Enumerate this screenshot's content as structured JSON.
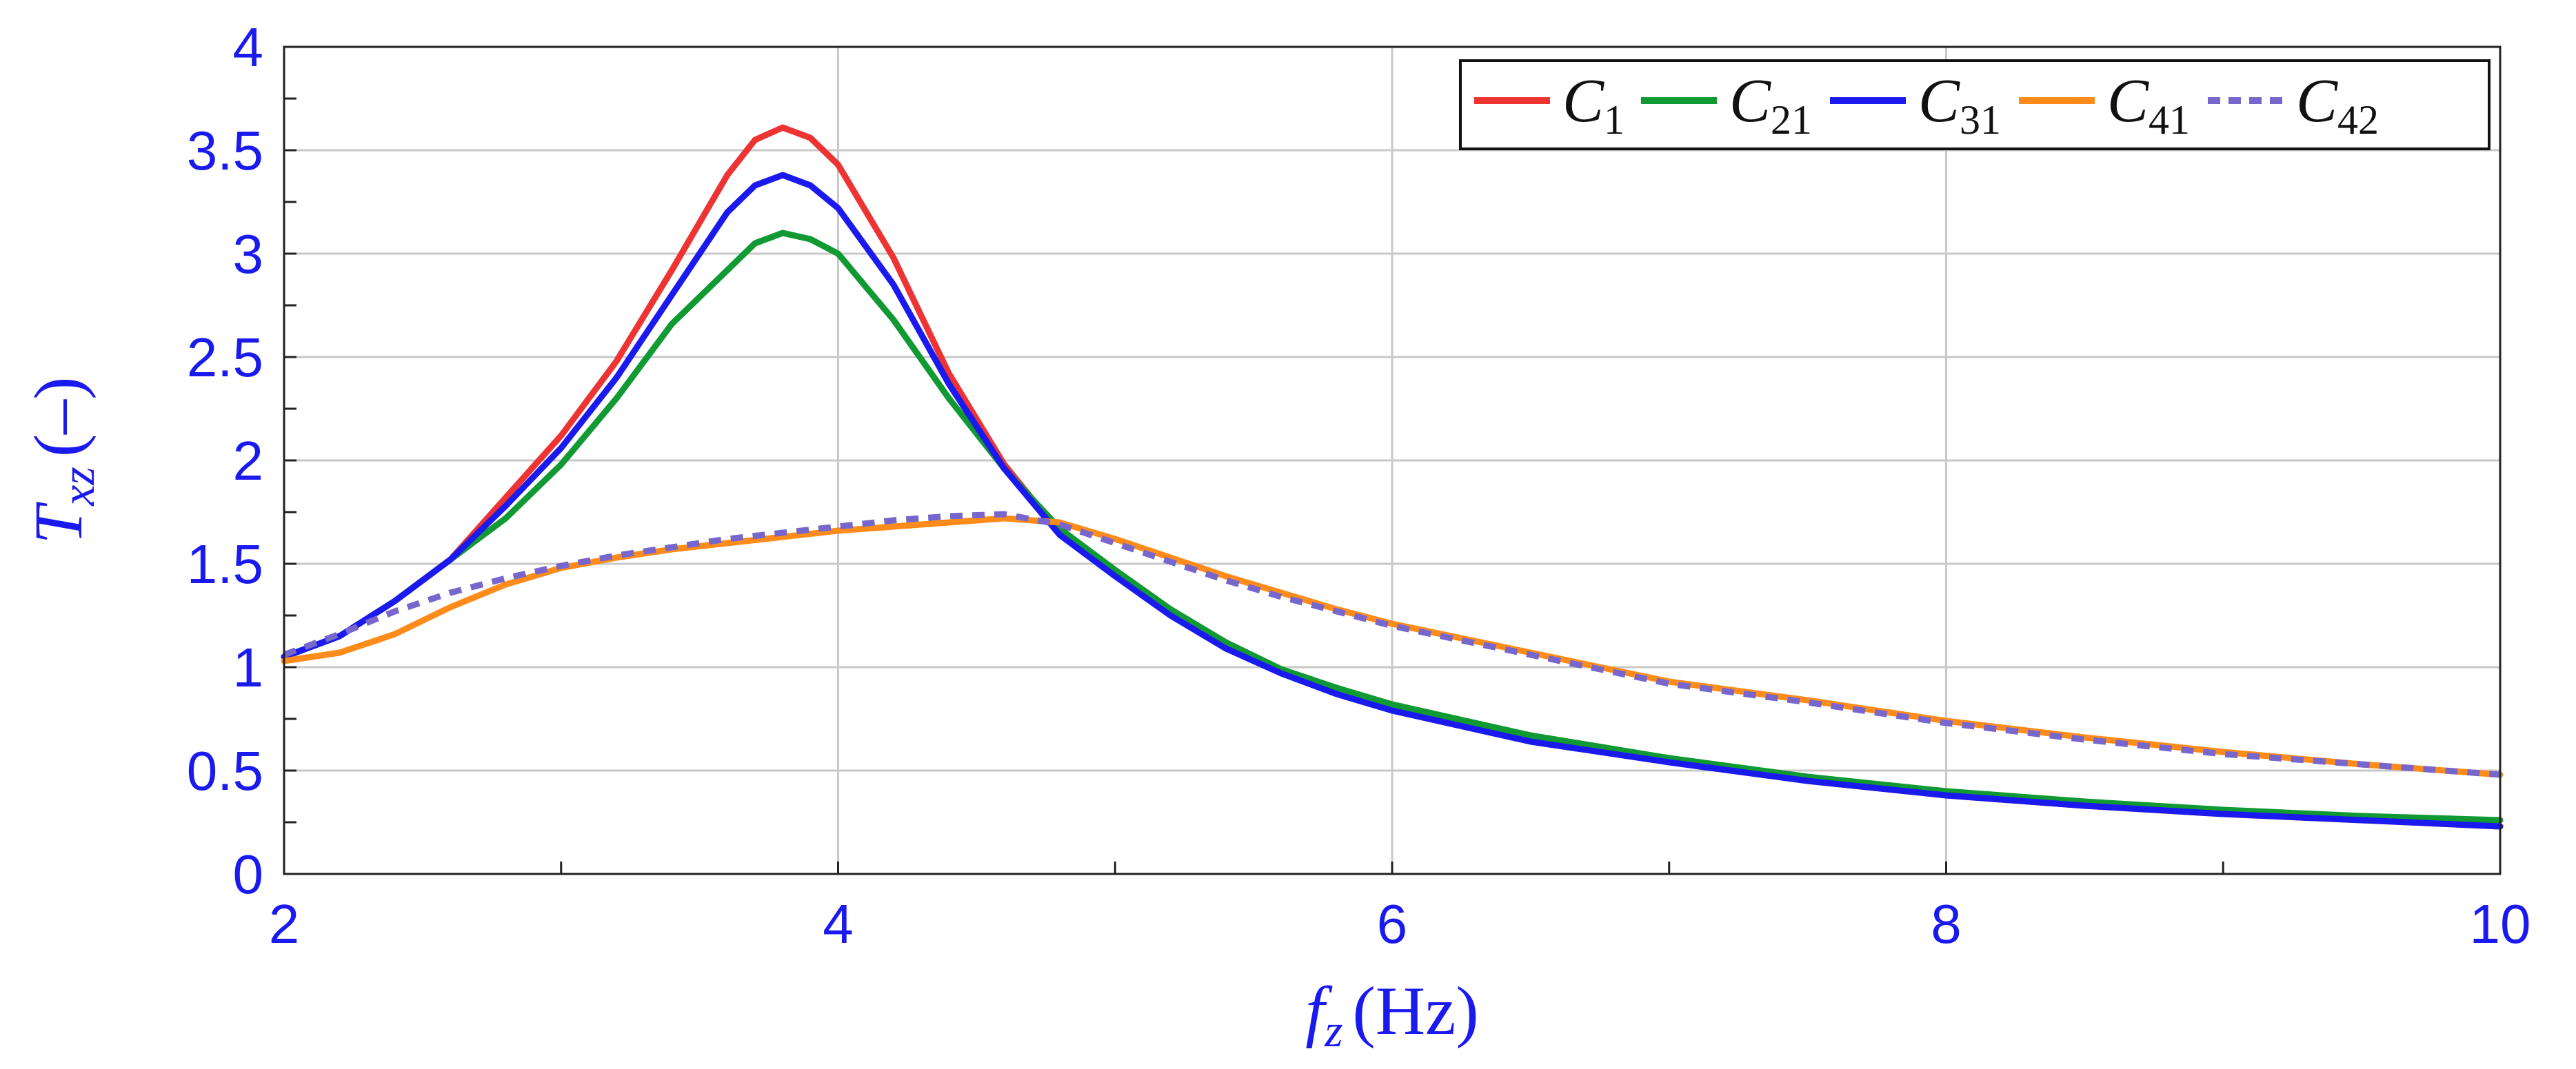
{
  "chart_data": {
    "type": "line",
    "xlabel": {
      "main": "f",
      "sub": "z",
      "unit": "(Hz)"
    },
    "ylabel": {
      "main": "T",
      "sub": "xz",
      "unit": "(–)"
    },
    "xlim": [
      2,
      10
    ],
    "ylim": [
      0,
      4
    ],
    "xticks": [
      2,
      4,
      6,
      8,
      10
    ],
    "yticks": [
      0,
      0.5,
      1,
      1.5,
      2,
      2.5,
      3,
      3.5,
      4
    ],
    "xtick_labels": [
      "2",
      "4",
      "6",
      "8",
      "10"
    ],
    "ytick_labels": [
      "0",
      "0.5",
      "1",
      "1.5",
      "2",
      "2.5",
      "3",
      "3.5",
      "4"
    ],
    "grid": true,
    "legend_position": "top-right",
    "series": [
      {
        "name": "C",
        "sub": "1",
        "color": "#ee3333",
        "dash": "solid",
        "x": [
          2.0,
          2.2,
          2.4,
          2.6,
          2.8,
          3.0,
          3.2,
          3.4,
          3.6,
          3.7,
          3.8,
          3.9,
          4.0,
          4.2,
          4.4,
          4.6,
          4.8,
          5.0,
          5.2,
          5.4,
          5.6,
          5.8,
          6.0,
          6.5,
          7.0,
          7.5,
          8.0,
          8.5,
          9.0,
          9.5,
          10.0
        ],
        "y": [
          1.05,
          1.15,
          1.32,
          1.52,
          1.82,
          2.12,
          2.48,
          2.92,
          3.38,
          3.55,
          3.61,
          3.56,
          3.43,
          2.98,
          2.42,
          1.98,
          1.65,
          1.45,
          1.26,
          1.1,
          0.98,
          0.88,
          0.8,
          0.65,
          0.55,
          0.45,
          0.38,
          0.33,
          0.29,
          0.26,
          0.23
        ]
      },
      {
        "name": "C",
        "sub": "21",
        "color": "#119933",
        "dash": "solid",
        "x": [
          2.0,
          2.2,
          2.4,
          2.6,
          2.8,
          3.0,
          3.2,
          3.4,
          3.6,
          3.7,
          3.8,
          3.9,
          4.0,
          4.2,
          4.4,
          4.6,
          4.8,
          5.0,
          5.2,
          5.4,
          5.6,
          5.8,
          6.0,
          6.5,
          7.0,
          7.5,
          8.0,
          8.5,
          9.0,
          9.5,
          10.0
        ],
        "y": [
          1.05,
          1.15,
          1.32,
          1.52,
          1.72,
          1.98,
          2.3,
          2.66,
          2.92,
          3.05,
          3.1,
          3.07,
          3.0,
          2.68,
          2.3,
          1.96,
          1.67,
          1.47,
          1.28,
          1.12,
          0.99,
          0.9,
          0.82,
          0.67,
          0.56,
          0.47,
          0.4,
          0.35,
          0.31,
          0.28,
          0.26
        ]
      },
      {
        "name": "C",
        "sub": "31",
        "color": "#1a1aee",
        "dash": "solid",
        "x": [
          2.0,
          2.2,
          2.4,
          2.6,
          2.8,
          3.0,
          3.2,
          3.4,
          3.6,
          3.7,
          3.8,
          3.9,
          4.0,
          4.2,
          4.4,
          4.6,
          4.8,
          5.0,
          5.2,
          5.4,
          5.6,
          5.8,
          6.0,
          6.5,
          7.0,
          7.5,
          8.0,
          8.5,
          9.0,
          9.5,
          10.0
        ],
        "y": [
          1.05,
          1.15,
          1.32,
          1.52,
          1.78,
          2.06,
          2.4,
          2.8,
          3.2,
          3.33,
          3.38,
          3.33,
          3.22,
          2.85,
          2.37,
          1.96,
          1.64,
          1.44,
          1.25,
          1.09,
          0.97,
          0.87,
          0.79,
          0.64,
          0.54,
          0.45,
          0.38,
          0.33,
          0.29,
          0.26,
          0.23
        ]
      },
      {
        "name": "C",
        "sub": "41",
        "color": "#ff8c1a",
        "dash": "solid",
        "x": [
          2.0,
          2.2,
          2.4,
          2.6,
          2.8,
          3.0,
          3.2,
          3.4,
          3.6,
          3.8,
          4.0,
          4.2,
          4.4,
          4.6,
          4.8,
          5.0,
          5.2,
          5.4,
          5.6,
          5.8,
          6.0,
          6.5,
          7.0,
          7.5,
          8.0,
          8.5,
          9.0,
          9.5,
          10.0
        ],
        "y": [
          1.03,
          1.07,
          1.16,
          1.29,
          1.4,
          1.48,
          1.53,
          1.57,
          1.6,
          1.63,
          1.66,
          1.68,
          1.7,
          1.72,
          1.7,
          1.62,
          1.53,
          1.44,
          1.36,
          1.28,
          1.21,
          1.07,
          0.93,
          0.84,
          0.74,
          0.66,
          0.59,
          0.53,
          0.48
        ]
      },
      {
        "name": "C",
        "sub": "42",
        "color": "#7766cc",
        "dash": "dashed",
        "x": [
          2.0,
          2.2,
          2.4,
          2.6,
          2.8,
          3.0,
          3.2,
          3.4,
          3.6,
          3.8,
          4.0,
          4.2,
          4.4,
          4.6,
          4.8,
          5.0,
          5.2,
          5.4,
          5.6,
          5.8,
          6.0,
          6.5,
          7.0,
          7.5,
          8.0,
          8.5,
          9.0,
          9.5,
          10.0
        ],
        "y": [
          1.06,
          1.16,
          1.27,
          1.36,
          1.43,
          1.49,
          1.54,
          1.58,
          1.62,
          1.65,
          1.68,
          1.71,
          1.73,
          1.74,
          1.69,
          1.6,
          1.51,
          1.42,
          1.34,
          1.27,
          1.2,
          1.06,
          0.92,
          0.83,
          0.73,
          0.65,
          0.58,
          0.53,
          0.48
        ]
      }
    ]
  }
}
